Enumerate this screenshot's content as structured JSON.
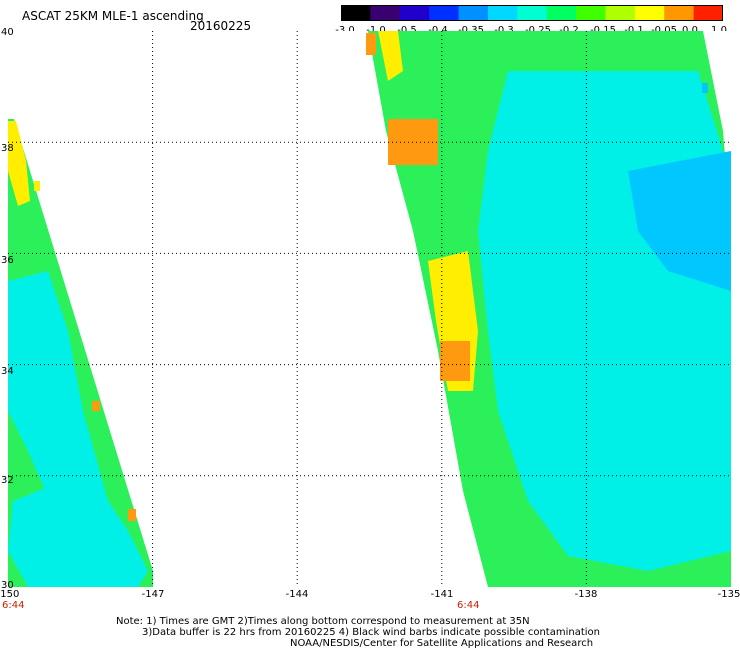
{
  "header": {
    "title": "ASCAT 25KM MLE-1 ascending",
    "date": "20160225"
  },
  "colorbar": {
    "ticks": [
      "-3.0",
      "-1.0",
      "-0.5",
      "-0.4",
      "-0.35",
      "-0.3",
      "-0.25",
      "-0.2",
      "-0.15",
      "-0.1",
      "-0.05",
      "0.0",
      "1.0"
    ],
    "colors": [
      "#000000",
      "#3b0070",
      "#2200cc",
      "#0030ff",
      "#0090ff",
      "#00d8ff",
      "#00ffd0",
      "#00ff60",
      "#40ff00",
      "#b0ff00",
      "#ffff00",
      "#ff9800",
      "#ff2000"
    ]
  },
  "map": {
    "x_labels": [
      "-150",
      "-147",
      "-144",
      "-141",
      "-138",
      "-135"
    ],
    "y_labels": [
      "40",
      "38",
      "36",
      "34",
      "32",
      "30"
    ],
    "lon_range": [
      -150,
      -135
    ],
    "lat_range": [
      30,
      40
    ],
    "pass_times": [
      "6:44",
      "6:44"
    ],
    "colors": {
      "background": "#ffffff",
      "grid": "#000000",
      "time_label": "#cc2200",
      "data_main": "#2cf05a",
      "data_cyan": "#00f0e8",
      "data_yellow": "#ffee00",
      "data_orange": "#ff9a10",
      "data_blue": "#00c8ff"
    }
  },
  "footer": {
    "note_line1": "Note: 1) Times are GMT 2)Times along bottom correspond to measurement at 35N",
    "note_line2": "3)Data buffer is 22 hrs from 20160225 4) Black wind barbs indicate possible contamination",
    "credit": "NOAA/NESDIS/Center for Satellite Applications and Research"
  }
}
